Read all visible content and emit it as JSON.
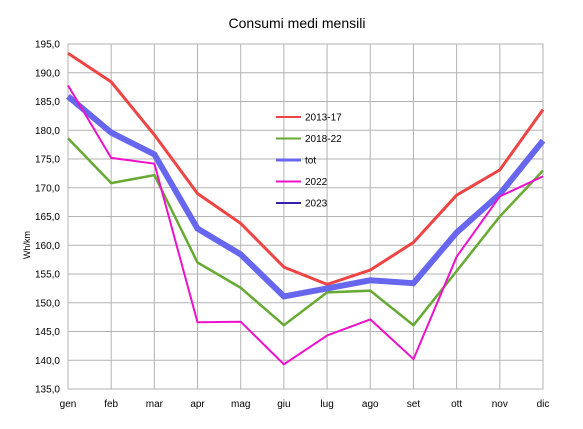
{
  "chart_data": {
    "type": "line",
    "title": "Consumi medi mensili",
    "xlabel": "",
    "ylabel": "Wh/km",
    "categories": [
      "gen",
      "feb",
      "mar",
      "apr",
      "mag",
      "giu",
      "lug",
      "ago",
      "set",
      "ott",
      "nov",
      "dic"
    ],
    "ylim": [
      135.0,
      195.0
    ],
    "yticks": [
      "135,0",
      "140,0",
      "145,0",
      "150,0",
      "155,0",
      "160,0",
      "165,0",
      "170,0",
      "175,0",
      "180,0",
      "185,0",
      "190,0",
      "195,0"
    ],
    "grid": true,
    "legend_position": "center",
    "series": [
      {
        "name": "2013-17",
        "color": "#ee4444",
        "values": [
          193.4,
          188.4,
          179.2,
          169.0,
          163.8,
          156.2,
          153.2,
          155.7,
          160.5,
          168.7,
          173.1,
          183.6
        ]
      },
      {
        "name": "2018-22",
        "color": "#66aa33",
        "values": [
          178.6,
          170.8,
          172.2,
          157.0,
          152.6,
          146.1,
          151.8,
          152.1,
          146.1,
          155.5,
          165.0,
          173.0
        ]
      },
      {
        "name": "tot",
        "color": "#6666ee",
        "values": [
          185.9,
          179.6,
          175.8,
          162.9,
          158.4,
          151.1,
          152.5,
          153.9,
          153.4,
          162.2,
          168.9,
          178.2
        ]
      },
      {
        "name": "2022",
        "color": "#ee11cc",
        "values": [
          187.8,
          175.2,
          174.2,
          146.6,
          146.7,
          139.3,
          144.3,
          147.1,
          140.2,
          158.0,
          168.5,
          172.0
        ]
      },
      {
        "name": "2023",
        "color": "#3322aa",
        "values": [
          186.4,
          null,
          null,
          null,
          null,
          null,
          null,
          null,
          null,
          null,
          null,
          null
        ]
      }
    ]
  }
}
